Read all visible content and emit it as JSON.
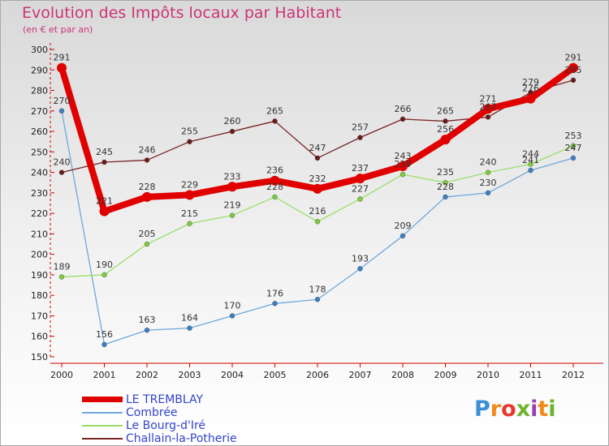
{
  "title": "Evolution des Impôts locaux par Habitant",
  "subtitle": "(en € et par an)",
  "logo_text": "Proxiti",
  "chart_data": {
    "type": "line",
    "x": [
      "2000",
      "2001",
      "2002",
      "2003",
      "2004",
      "2005",
      "2006",
      "2007",
      "2008",
      "2009",
      "2010",
      "2011",
      "2012"
    ],
    "ylim": [
      150,
      300
    ],
    "yticks": [
      150,
      160,
      170,
      180,
      190,
      200,
      210,
      220,
      230,
      240,
      250,
      260,
      270,
      280,
      290,
      300
    ],
    "grid": false,
    "legend_position": "bottom-left",
    "series": [
      {
        "name": "LE TREMBLAY",
        "color": "#e00000",
        "point_color": "#e00000",
        "emphasis": true,
        "values": [
          291,
          221,
          228,
          229,
          233,
          236,
          232,
          237,
          243,
          256,
          271,
          276,
          291
        ],
        "labels": [
          "291",
          "221",
          "228",
          "229",
          "233",
          "236",
          "232",
          "237",
          "243",
          "256",
          "271",
          "276",
          "291"
        ]
      },
      {
        "name": "Combrée",
        "color": "#6fa8dc",
        "point_color": "#3d7fc4",
        "emphasis": false,
        "values": [
          270,
          156,
          163,
          164,
          170,
          176,
          178,
          193,
          209,
          228,
          230,
          241,
          247
        ],
        "labels": [
          "270",
          "156",
          "163",
          "164",
          "170",
          "176",
          "178",
          "193",
          "209",
          "228",
          "230",
          "241",
          "247"
        ]
      },
      {
        "name": "Le Bourg-d'Iré",
        "color": "#9bde6c",
        "point_color": "#7ccc3e",
        "emphasis": false,
        "values": [
          189,
          190,
          205,
          215,
          219,
          228,
          216,
          227,
          239,
          235,
          240,
          244,
          253
        ],
        "labels": [
          "189",
          "190",
          "205",
          "215",
          "219",
          "228",
          "216",
          "227",
          "239",
          "235",
          "240",
          "244",
          "253"
        ]
      },
      {
        "name": "Challain-la-Potherie",
        "color": "#7a2424",
        "point_color": "#6a1a1a",
        "emphasis": false,
        "values": [
          240,
          245,
          246,
          255,
          260,
          265,
          247,
          257,
          266,
          265,
          267,
          279,
          285
        ],
        "labels": [
          "240",
          "245",
          "246",
          "255",
          "260",
          "265",
          "247",
          "257",
          "266",
          "265",
          "267",
          "279",
          "285"
        ]
      }
    ]
  }
}
